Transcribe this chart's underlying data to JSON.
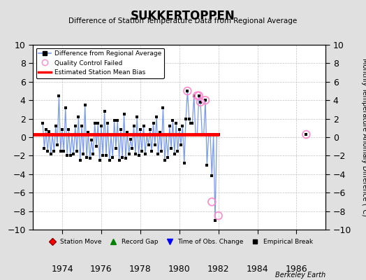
{
  "title": "SUKKERTOPPEN",
  "subtitle": "Difference of Station Temperature Data from Regional Average",
  "ylabel": "Monthly Temperature Anomaly Difference (°C)",
  "ylim": [
    -10,
    10
  ],
  "xlim": [
    1972.5,
    1987.5
  ],
  "yticks": [
    -10,
    -8,
    -6,
    -4,
    -2,
    0,
    2,
    4,
    6,
    8,
    10
  ],
  "xticks": [
    1974,
    1976,
    1978,
    1980,
    1982,
    1984,
    1986
  ],
  "bias_value": 0.3,
  "bias_x_start": 1972.5,
  "bias_x_end": 1982.05,
  "line_color": "#7799EE",
  "marker_color": "#000000",
  "bias_color": "#FF0000",
  "qc_color": "#FF88CC",
  "background_color": "#E0E0E0",
  "plot_bg": "#FFFFFF",
  "main_data_x": [
    1973.0,
    1973.083,
    1973.167,
    1973.25,
    1973.333,
    1973.417,
    1973.5,
    1973.583,
    1973.667,
    1973.75,
    1973.833,
    1973.917,
    1974.0,
    1974.083,
    1974.167,
    1974.25,
    1974.333,
    1974.417,
    1974.5,
    1974.583,
    1974.667,
    1974.75,
    1974.833,
    1974.917,
    1975.0,
    1975.083,
    1975.167,
    1975.25,
    1975.333,
    1975.417,
    1975.5,
    1975.583,
    1975.667,
    1975.75,
    1975.833,
    1975.917,
    1976.0,
    1976.083,
    1976.167,
    1976.25,
    1976.333,
    1976.417,
    1976.5,
    1976.583,
    1976.667,
    1976.75,
    1976.833,
    1976.917,
    1977.0,
    1977.083,
    1977.167,
    1977.25,
    1977.333,
    1977.417,
    1977.5,
    1977.583,
    1977.667,
    1977.75,
    1977.833,
    1977.917,
    1978.0,
    1978.083,
    1978.167,
    1978.25,
    1978.333,
    1978.417,
    1978.5,
    1978.583,
    1978.667,
    1978.75,
    1978.833,
    1978.917,
    1979.0,
    1979.083,
    1979.167,
    1979.25,
    1979.333,
    1979.417,
    1979.5,
    1979.583,
    1979.667,
    1979.75,
    1979.833,
    1979.917,
    1980.0,
    1980.083,
    1980.167,
    1980.25,
    1980.333,
    1980.417,
    1980.5,
    1980.583,
    1980.667,
    1980.75,
    1980.833,
    1980.917,
    1981.0,
    1981.083,
    1981.167,
    1981.25,
    1981.333,
    1981.417,
    1981.5,
    1981.583,
    1981.667,
    1981.75,
    1981.833,
    1981.917,
    1982.0
  ],
  "main_data_y": [
    1.5,
    -1.2,
    0.8,
    -1.5,
    0.6,
    -1.8,
    0.3,
    -1.5,
    1.2,
    -0.8,
    4.5,
    -1.5,
    0.8,
    -1.5,
    3.2,
    -2.0,
    0.8,
    -2.0,
    0.2,
    -1.8,
    1.2,
    -1.5,
    2.2,
    -2.5,
    1.2,
    -1.8,
    3.5,
    -2.2,
    0.5,
    -2.3,
    -0.3,
    -1.8,
    1.5,
    -1.0,
    1.5,
    -2.5,
    1.2,
    -2.0,
    2.8,
    -2.0,
    1.5,
    -2.5,
    0.2,
    -2.2,
    1.8,
    -1.2,
    1.8,
    -2.5,
    0.8,
    -2.2,
    2.5,
    -2.3,
    0.5,
    -1.8,
    -0.2,
    -1.2,
    1.2,
    -1.8,
    2.2,
    -2.0,
    0.8,
    -1.5,
    1.2,
    -1.8,
    0.2,
    -0.8,
    0.8,
    -1.5,
    1.5,
    -0.8,
    2.2,
    -1.8,
    0.5,
    -1.5,
    3.2,
    -2.5,
    0.2,
    -2.2,
    1.2,
    -1.2,
    1.8,
    -1.8,
    1.5,
    -1.5,
    0.8,
    -0.8,
    1.2,
    -2.8,
    2.0,
    5.0,
    2.0,
    1.5,
    1.5,
    4.5,
    0.3,
    0.3,
    4.5,
    3.8,
    0.3,
    0.3,
    4.0,
    -3.0,
    0.3,
    0.3,
    -4.2,
    0.3,
    -9.0,
    0.3,
    0.3
  ],
  "qc_points_x": [
    1980.417,
    1980.917,
    1981.0,
    1981.083,
    1981.333,
    1981.667,
    1982.0
  ],
  "qc_points_y": [
    5.0,
    4.5,
    4.5,
    3.8,
    4.0,
    -7.0,
    -8.5
  ],
  "isolated_x": [
    1986.5
  ],
  "isolated_y": [
    0.3
  ]
}
